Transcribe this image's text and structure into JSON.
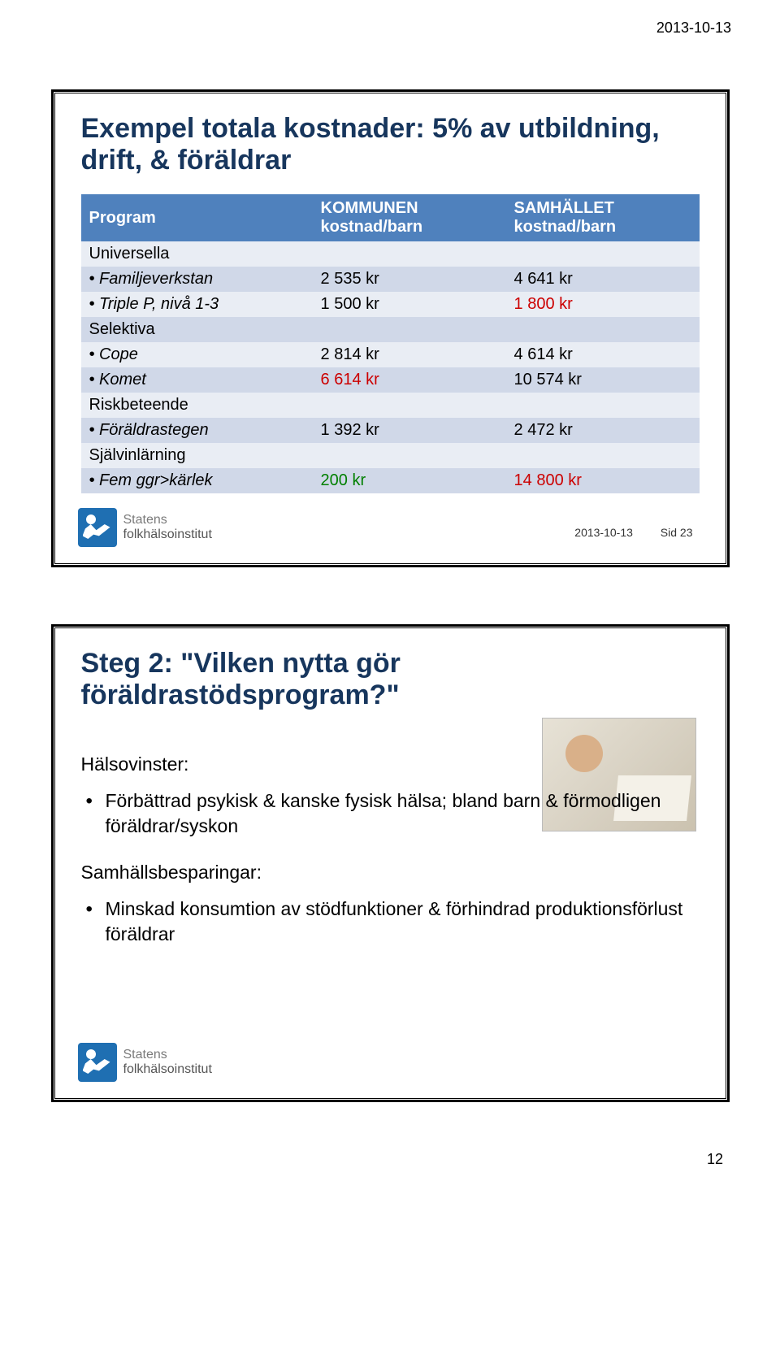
{
  "header_date": "2013-10-13",
  "slide1": {
    "title": "Exempel totala kostnader: 5% av utbildning, drift, & föräldrar",
    "col1": "Program",
    "col2_l1": "KOMMUNEN",
    "col2_l2": "kostnad/barn",
    "col3_l1": "SAMHÄLLET",
    "col3_l2": "kostnad/barn",
    "rows": {
      "sect1": "Universella",
      "r1_label": "• Familjeverkstan",
      "r1_c2": "2 535 kr",
      "r1_c3": "4 641 kr",
      "r2_label": "• Triple P, nivå 1-3",
      "r2_c2": "1 500 kr",
      "r2_c3": "1 800 kr",
      "sect2": "Selektiva",
      "r3_label": "• Cope",
      "r3_c2": "2 814 kr",
      "r3_c3": "4 614 kr",
      "r4_label": "• Komet",
      "r4_c2": "6 614 kr",
      "r4_c3": "10 574 kr",
      "sect3": "Riskbeteende",
      "r5_label": "• Föräldrastegen",
      "r5_c2": "1 392 kr",
      "r5_c3": "2 472 kr",
      "sect4": "Självinlärning",
      "r6_label": "• Fem ggr>kärlek",
      "r6_c2": "200 kr",
      "r6_c3": "14 800 kr"
    },
    "meta_date": "2013-10-13",
    "meta_page": "Sid 23",
    "logo_line1": "Statens",
    "logo_line2": "folkhälsoinstitut"
  },
  "slide2": {
    "title": "Steg 2: \"Vilken nytta gör föräldrastödsprogram?\"",
    "sub1": "Hälsovinster:",
    "b1": "Förbättrad psykisk & kanske fysisk hälsa; bland barn & förmodligen föräldrar/syskon",
    "sub2": "Samhällsbesparingar:",
    "b2": "Minskad konsumtion av stödfunktioner & förhindrad produktionsförlust föräldrar",
    "logo_line1": "Statens",
    "logo_line2": "folkhälsoinstitut"
  },
  "page_number": "12",
  "colors": {
    "title": "#17365d",
    "th_bg": "#4f81bd",
    "row_light": "#e9edf4",
    "row_dark": "#d0d8e8",
    "red": "#cc0000",
    "green": "#008000",
    "logo": "#1f6fb2"
  }
}
